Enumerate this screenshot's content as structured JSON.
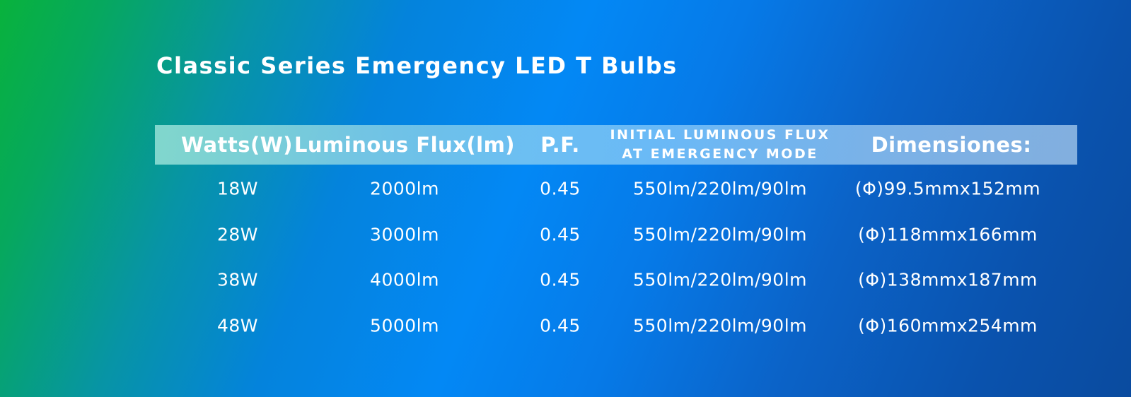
{
  "title": "Classic Series Emergency LED T Bulbs",
  "table": {
    "headers": {
      "watts": "Watts(W)",
      "luminous_flux": "Luminous Flux(lm)",
      "pf": "P.F.",
      "initial_flux_line1": "INITIAL LUMINOUS FLUX",
      "initial_flux_line2": "AT EMERGENCY MODE",
      "dimensions": "Dimensiones:"
    },
    "rows": [
      {
        "watts": "18W",
        "luminous_flux": "2000lm",
        "pf": "0.45",
        "emergency_flux": "550lm/220lm/90lm",
        "dimensions": "(Φ)99.5mmx152mm"
      },
      {
        "watts": "28W",
        "luminous_flux": "3000lm",
        "pf": "0.45",
        "emergency_flux": "550lm/220lm/90lm",
        "dimensions": "(Φ)118mmx166mm"
      },
      {
        "watts": "38W",
        "luminous_flux": "4000lm",
        "pf": "0.45",
        "emergency_flux": "550lm/220lm/90lm",
        "dimensions": "(Φ)138mmx187mm"
      },
      {
        "watts": "48W",
        "luminous_flux": "5000lm",
        "pf": "0.45",
        "emergency_flux": "550lm/220lm/90lm",
        "dimensions": "(Φ)160mmx254mm"
      }
    ]
  },
  "colors": {
    "background_left": "#08b23c",
    "background_center": "#0388f5",
    "background_right": "#0a4b9f",
    "text": "#ffffff"
  }
}
